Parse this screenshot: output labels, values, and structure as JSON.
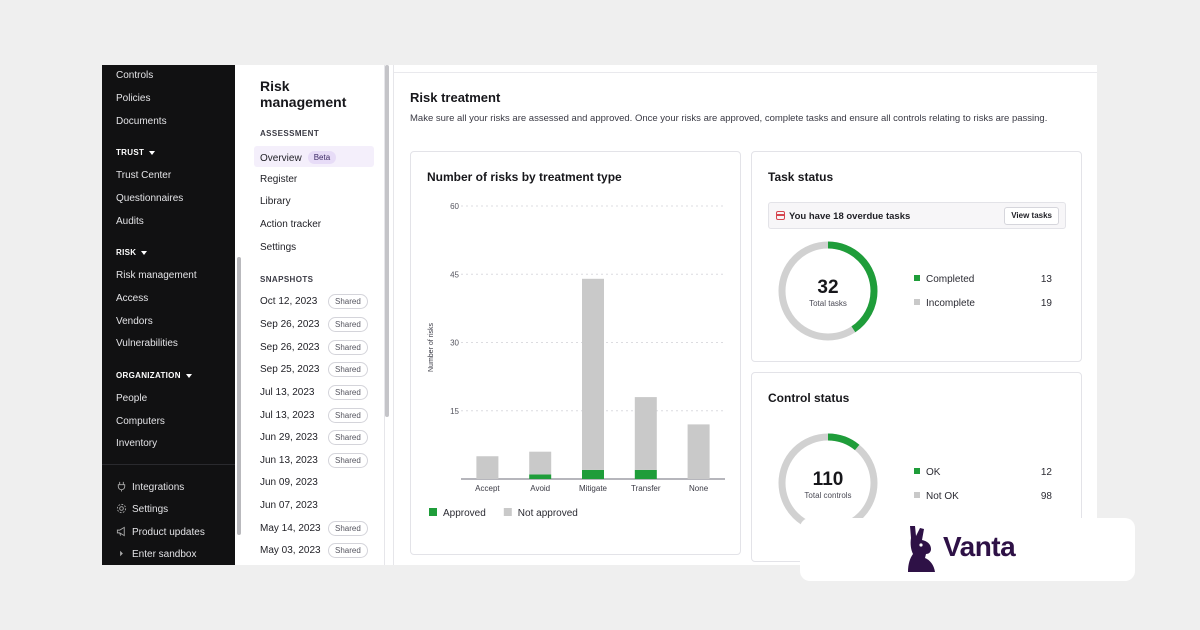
{
  "brand": {
    "name": "Vanta",
    "color": "#2e1146"
  },
  "colors": {
    "approved": "#1f9d3a",
    "not_approved": "#c9c9c9",
    "incomplete": "#d1d1d1"
  },
  "sidebar": {
    "top_items": [
      "Controls",
      "Policies",
      "Documents"
    ],
    "sections": [
      {
        "title": "TRUST",
        "items": [
          "Trust Center",
          "Questionnaires",
          "Audits"
        ]
      },
      {
        "title": "RISK",
        "items": [
          "Risk management",
          "Access",
          "Vendors",
          "Vulnerabilities"
        ]
      },
      {
        "title": "ORGANIZATION",
        "items": [
          "People",
          "Computers",
          "Inventory"
        ]
      }
    ],
    "footer": [
      {
        "label": "Integrations",
        "icon": "plug-icon"
      },
      {
        "label": "Settings",
        "icon": "gear-icon"
      },
      {
        "label": "Product updates",
        "icon": "megaphone-icon"
      },
      {
        "label": "Enter sandbox",
        "icon": "chevron-right-icon"
      }
    ]
  },
  "subnav": {
    "title": "Risk management",
    "assessment_label": "ASSESSMENT",
    "assessment_items": [
      "Overview",
      "Register",
      "Library",
      "Action tracker",
      "Settings"
    ],
    "beta_label": "Beta",
    "snapshots_label": "SNAPSHOTS",
    "shared_label": "Shared",
    "snapshots": [
      {
        "date": "Oct 12, 2023",
        "shared": true
      },
      {
        "date": "Sep 26, 2023",
        "shared": true
      },
      {
        "date": "Sep 26, 2023",
        "shared": true
      },
      {
        "date": "Sep 25, 2023",
        "shared": true
      },
      {
        "date": "Jul 13, 2023",
        "shared": true
      },
      {
        "date": "Jul 13, 2023",
        "shared": true
      },
      {
        "date": "Jun 29, 2023",
        "shared": true
      },
      {
        "date": "Jun 13, 2023",
        "shared": true
      },
      {
        "date": "Jun 09, 2023",
        "shared": false
      },
      {
        "date": "Jun 07, 2023",
        "shared": false
      },
      {
        "date": "May 14, 2023",
        "shared": true
      },
      {
        "date": "May 03, 2023",
        "shared": true
      }
    ]
  },
  "main": {
    "title": "Risk treatment",
    "description": "Make sure all your risks are assessed and approved. Once your risks are approved, complete tasks and ensure all controls relating to risks are passing."
  },
  "chart_card": {
    "title": "Number of risks by treatment type"
  },
  "chart_data": {
    "type": "bar",
    "stacked": true,
    "categories": [
      "Accept",
      "Avoid",
      "Mitigate",
      "Transfer",
      "None"
    ],
    "series": [
      {
        "name": "Approved",
        "values": [
          0,
          1,
          2,
          2,
          0
        ],
        "color": "#1f9d3a"
      },
      {
        "name": "Not approved",
        "values": [
          5,
          5,
          42,
          16,
          12
        ],
        "color": "#c9c9c9"
      }
    ],
    "ylabel": "Number of risks",
    "ylim": [
      0,
      60
    ],
    "yticks": [
      15,
      30,
      45,
      60
    ],
    "grid": true,
    "legend": "bottom-left"
  },
  "task_status": {
    "title": "Task status",
    "overdue_text": "You have 18 overdue tasks",
    "view_button": "View tasks",
    "total": "32",
    "total_label": "Total tasks",
    "legend": [
      {
        "label": "Completed",
        "value": 13,
        "color": "#1f9d3a"
      },
      {
        "label": "Incomplete",
        "value": 19,
        "color": "#d1d1d1"
      }
    ]
  },
  "control_status": {
    "title": "Control status",
    "total": "110",
    "total_label": "Total controls",
    "legend": [
      {
        "label": "OK",
        "value": 12,
        "color": "#1f9d3a"
      },
      {
        "label": "Not OK",
        "value": 98,
        "color": "#d1d1d1"
      }
    ]
  }
}
